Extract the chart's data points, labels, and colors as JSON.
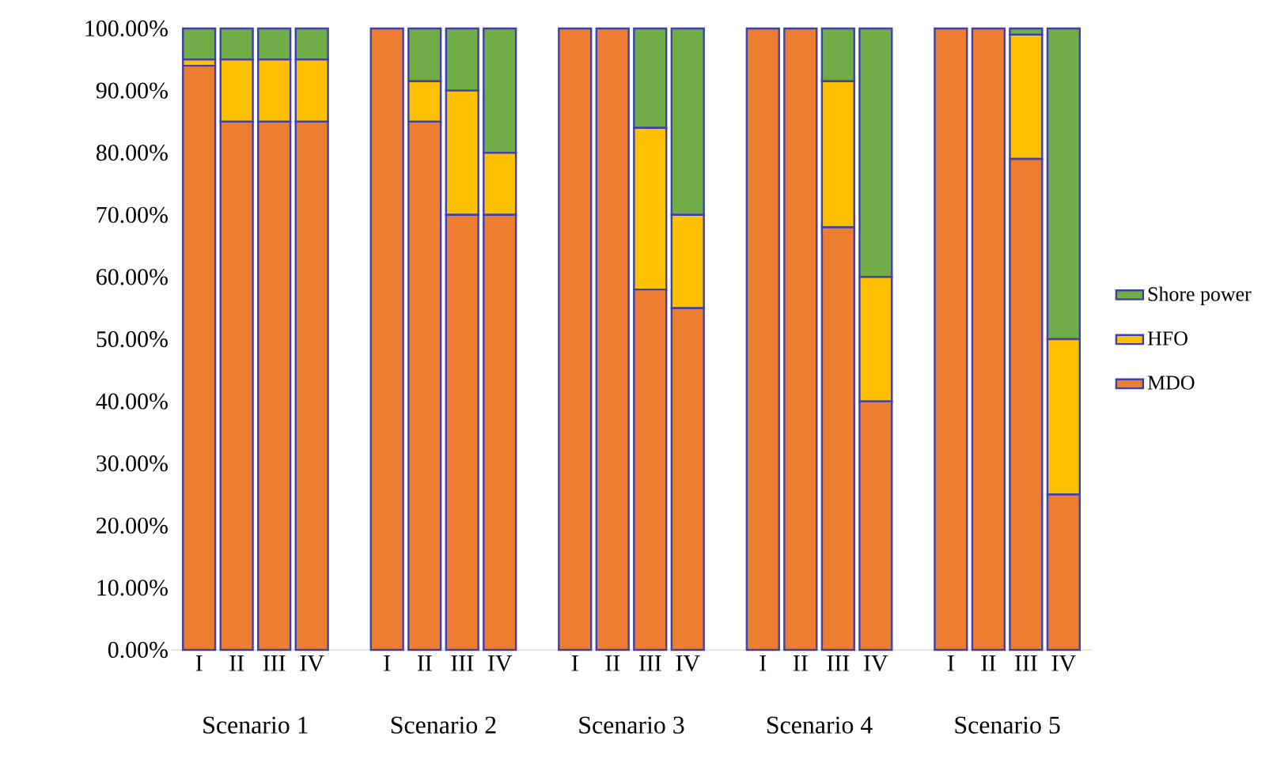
{
  "chart_data": {
    "type": "bar",
    "stacked": true,
    "categories": [
      "I",
      "II",
      "III",
      "IV",
      "I",
      "II",
      "III",
      "IV",
      "I",
      "II",
      "III",
      "IV",
      "I",
      "II",
      "III",
      "IV",
      "I",
      "II",
      "III",
      "IV"
    ],
    "series": [
      {
        "name": "MDO",
        "color": "#ed7d31",
        "values": [
          94,
          85,
          85,
          85,
          100,
          85,
          70,
          70,
          100,
          100,
          58,
          55,
          100,
          100,
          68,
          40,
          100,
          100,
          79,
          25
        ]
      },
      {
        "name": "HFO",
        "color": "#ffc000",
        "values": [
          1,
          10,
          10,
          10,
          0,
          6.5,
          20,
          10,
          0,
          0,
          26,
          15,
          0,
          0,
          23.5,
          20,
          0,
          0,
          20,
          25
        ]
      },
      {
        "name": "Shore power",
        "color": "#70ad47",
        "values": [
          5,
          5,
          5,
          5,
          0,
          8.5,
          10,
          20,
          0,
          0,
          16,
          30,
          0,
          0,
          8.5,
          40,
          0,
          0,
          1,
          50
        ]
      }
    ],
    "ylim": [
      0,
      100
    ],
    "yticks": [
      {
        "value": 0,
        "label": "0.00%"
      },
      {
        "value": 10,
        "label": "10.00%"
      },
      {
        "value": 20,
        "label": "20.00%"
      },
      {
        "value": 30,
        "label": "30.00%"
      },
      {
        "value": 40,
        "label": "40.00%"
      },
      {
        "value": 50,
        "label": "50.00%"
      },
      {
        "value": 60,
        "label": "60.00%"
      },
      {
        "value": 70,
        "label": "70.00%"
      },
      {
        "value": 80,
        "label": "80.00%"
      },
      {
        "value": 90,
        "label": "90.00%"
      },
      {
        "value": 100,
        "label": "100.00%"
      }
    ],
    "annotations": [
      "Scenario 1",
      "Scenario 2",
      "Scenario 3",
      "Scenario 4",
      "Scenario 5"
    ],
    "legend": "right"
  }
}
